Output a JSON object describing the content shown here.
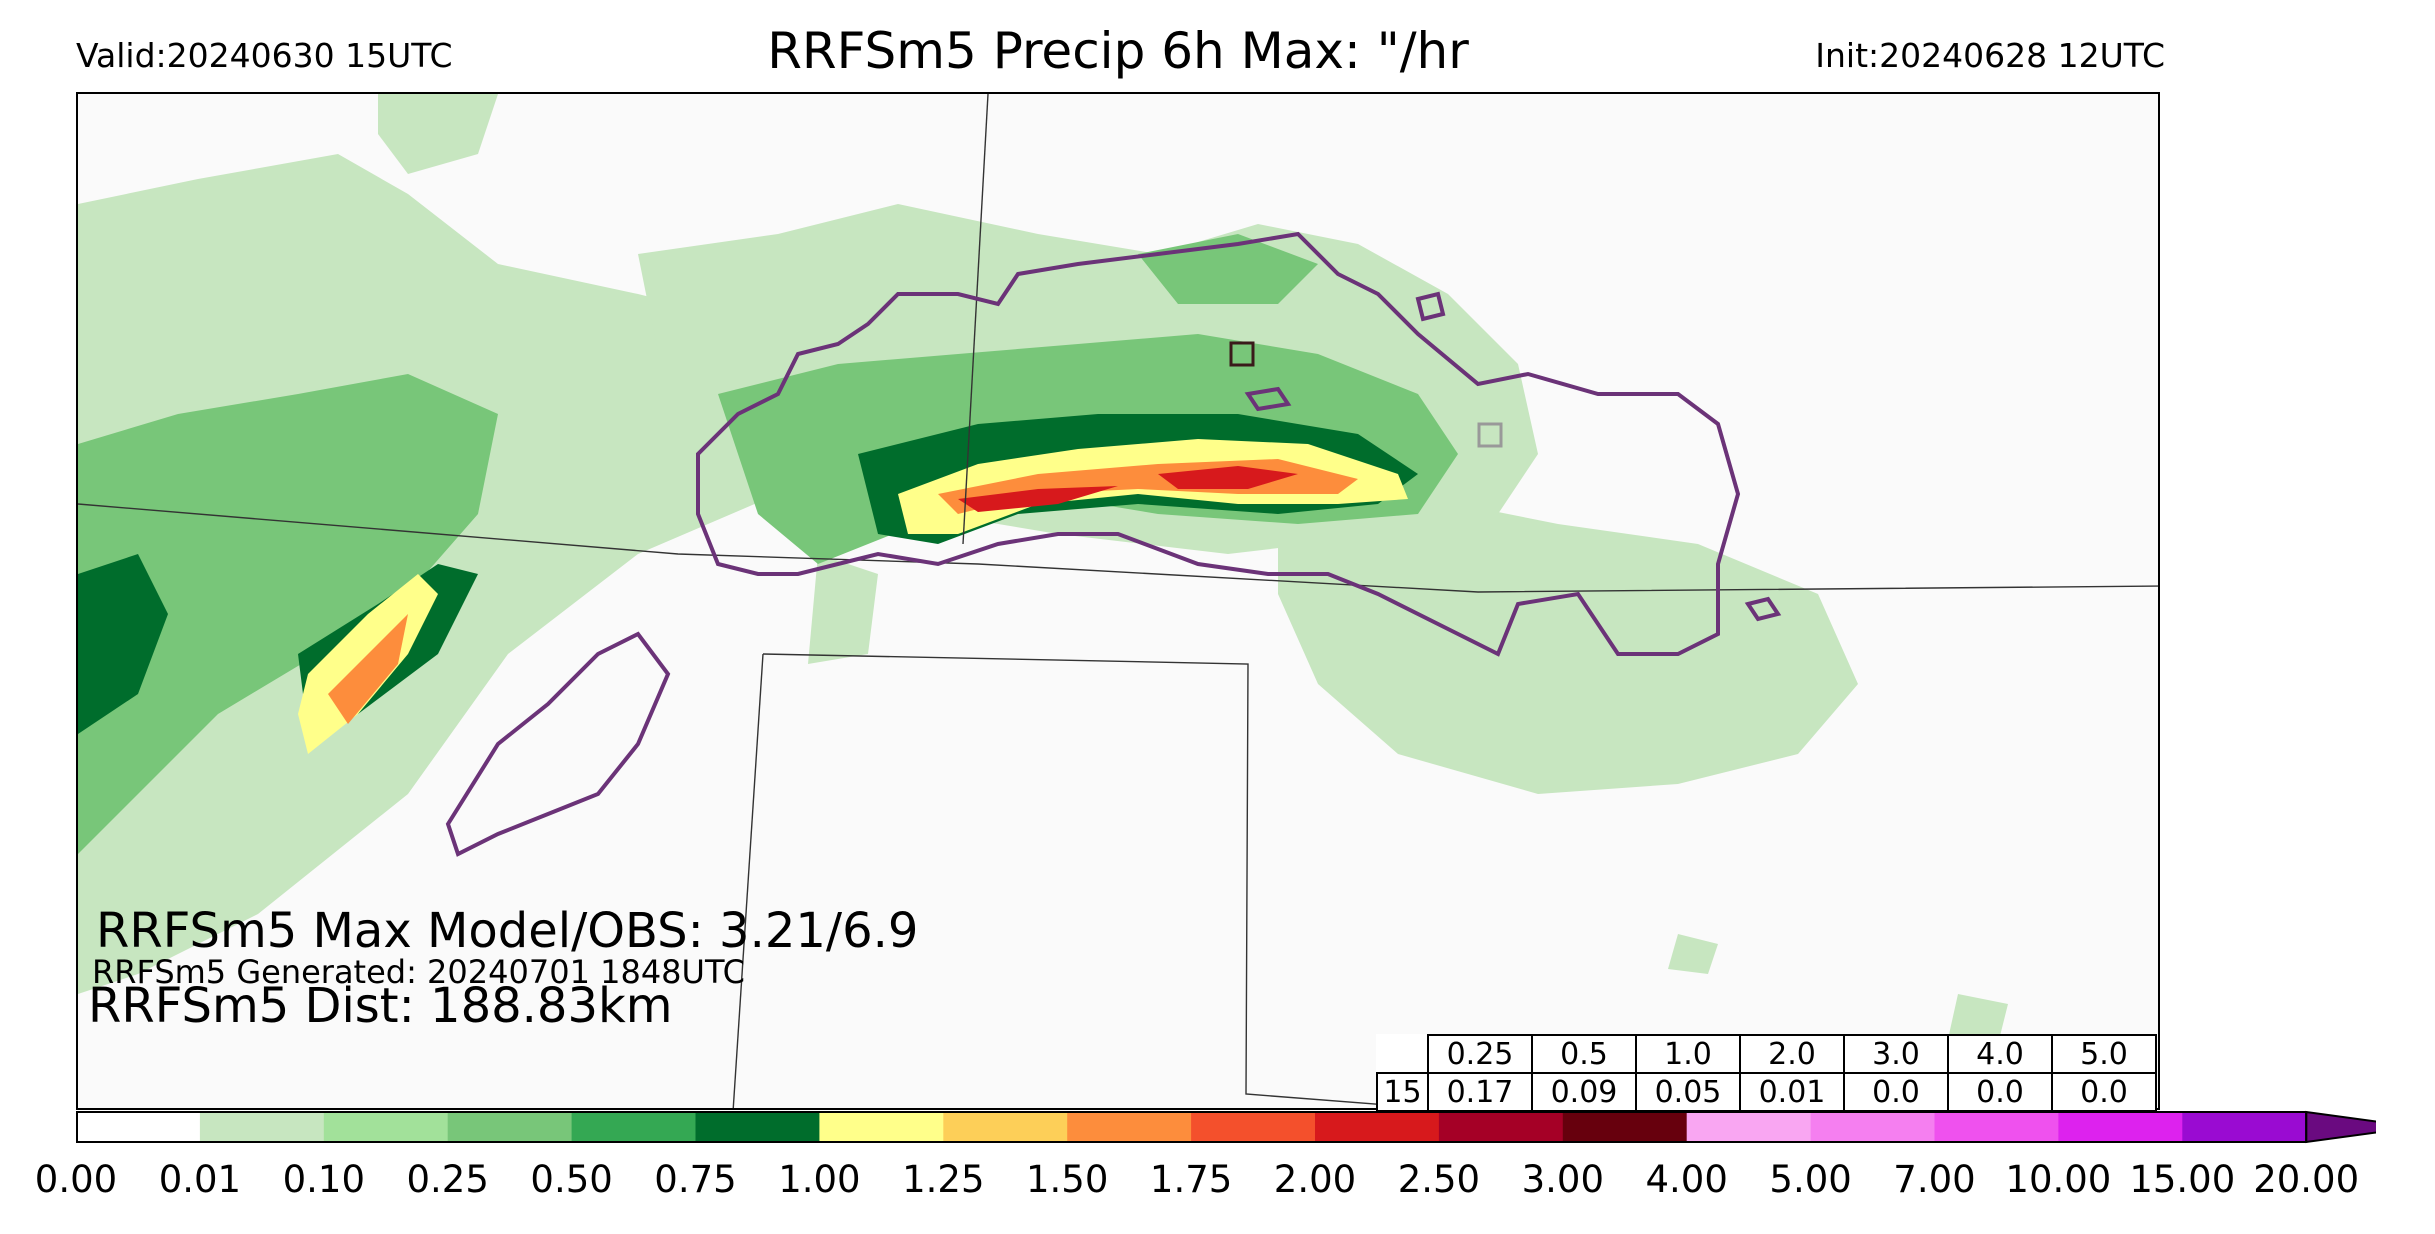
{
  "header": {
    "valid": "Valid:20240630 15UTC",
    "title": "RRFSm5 Precip 6h Max: \"/hr",
    "init": "Init:20240628 12UTC"
  },
  "stats": {
    "max_model_obs": "RRFSm5 Max Model/OBS: 3.21/6.9",
    "generated": "RRFSm5 Generated: 20240701 1848UTC",
    "distance": "RRFSm5 Dist: 188.83km"
  },
  "score_table": {
    "thresholds": [
      "0.25",
      "0.5",
      "1.0",
      "2.0",
      "3.0",
      "4.0",
      "5.0"
    ],
    "row_label": "15",
    "values": [
      "0.17",
      "0.09",
      "0.05",
      "0.01",
      "0.0",
      "0.0",
      "0.0"
    ]
  },
  "colorbar": {
    "ticks": [
      "0.00",
      "0.01",
      "0.10",
      "0.25",
      "0.50",
      "0.75",
      "1.00",
      "1.25",
      "1.50",
      "1.75",
      "2.00",
      "2.50",
      "3.00",
      "4.00",
      "5.00",
      "7.00",
      "10.00",
      "15.00",
      "20.00"
    ],
    "colors": [
      "#ffffff",
      "#c7e6c0",
      "#a2e19a",
      "#78c679",
      "#34a853",
      "#006d2c",
      "#ffff8a",
      "#fdcf58",
      "#fd8d3c",
      "#f4502c",
      "#d7191c",
      "#a50026",
      "#67000d",
      "#f9a6f2",
      "#f57ff0",
      "#ef51ee",
      "#dd22ee",
      "#9a0bd2",
      "#6a0a80"
    ]
  },
  "map_colors": {
    "obs_contour": "#6b3378",
    "state_lines": "#333333",
    "observed_max_box": "#3a1a1a",
    "model_max_box": "#999999"
  }
}
